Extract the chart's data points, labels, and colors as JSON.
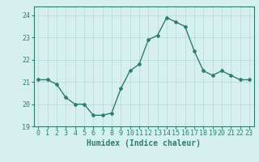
{
  "x": [
    0,
    1,
    2,
    3,
    4,
    5,
    6,
    7,
    8,
    9,
    10,
    11,
    12,
    13,
    14,
    15,
    16,
    17,
    18,
    19,
    20,
    21,
    22,
    23
  ],
  "y": [
    21.1,
    21.1,
    20.9,
    20.3,
    20.0,
    20.0,
    19.5,
    19.5,
    19.6,
    20.7,
    21.5,
    21.8,
    22.9,
    23.1,
    23.9,
    23.7,
    23.5,
    22.4,
    21.5,
    21.3,
    21.5,
    21.3,
    21.1,
    21.1
  ],
  "line_color": "#2e7d6e",
  "marker": "D",
  "marker_size": 2.0,
  "bg_color": "#d6f0f0",
  "grid_color": "#b8d8d8",
  "xlabel": "Humidex (Indice chaleur)",
  "xlabel_color": "#2e7d6e",
  "ylim": [
    19.0,
    24.4
  ],
  "yticks": [
    19,
    20,
    21,
    22,
    23,
    24
  ],
  "xticks": [
    0,
    1,
    2,
    3,
    4,
    5,
    6,
    7,
    8,
    9,
    10,
    11,
    12,
    13,
    14,
    15,
    16,
    17,
    18,
    19,
    20,
    21,
    22,
    23
  ],
  "tick_color": "#2e7d6e",
  "axis_label_fontsize": 7.0,
  "tick_fontsize": 6.0,
  "linewidth": 1.0
}
